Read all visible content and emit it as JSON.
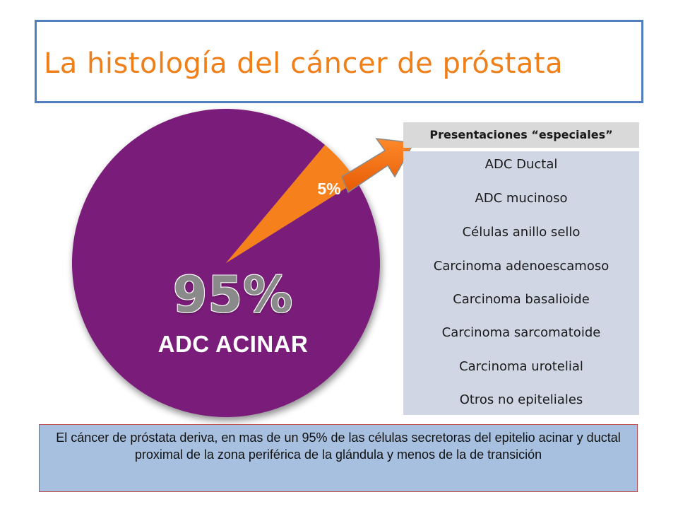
{
  "title": "La histología del cáncer de próstata",
  "chart_data": {
    "type": "pie",
    "slices": [
      {
        "label": "ADC ACINAR",
        "value": 95,
        "display": "95%",
        "color": "#7a1b79"
      },
      {
        "label": "Presentaciones “especiales”",
        "value": 5,
        "display": "5%",
        "color": "#f6801f"
      }
    ]
  },
  "special_list": {
    "header": "Presentaciones “especiales”",
    "items": [
      "ADC Ductal",
      "ADC mucinoso",
      "Células anillo sello",
      "Carcinoma adenoescamoso",
      "Carcinoma basalioide",
      "Carcinoma sarcomatoide",
      "Carcinoma urotelial",
      "Otros no epiteliales"
    ]
  },
  "caption": "El cáncer de próstata deriva, en mas de un 95% de las células secretoras del epitelio acinar y ductal proximal de la zona periférica de la glándula y menos de la de transición",
  "colors": {
    "title": "#f07f18",
    "title_border": "#4f7fbd",
    "major_slice": "#7a1b79",
    "minor_slice": "#f6801f",
    "arrow": "#f06a0f",
    "list_background": "#d1d6e5",
    "caption_background": "#a8c0e0"
  }
}
